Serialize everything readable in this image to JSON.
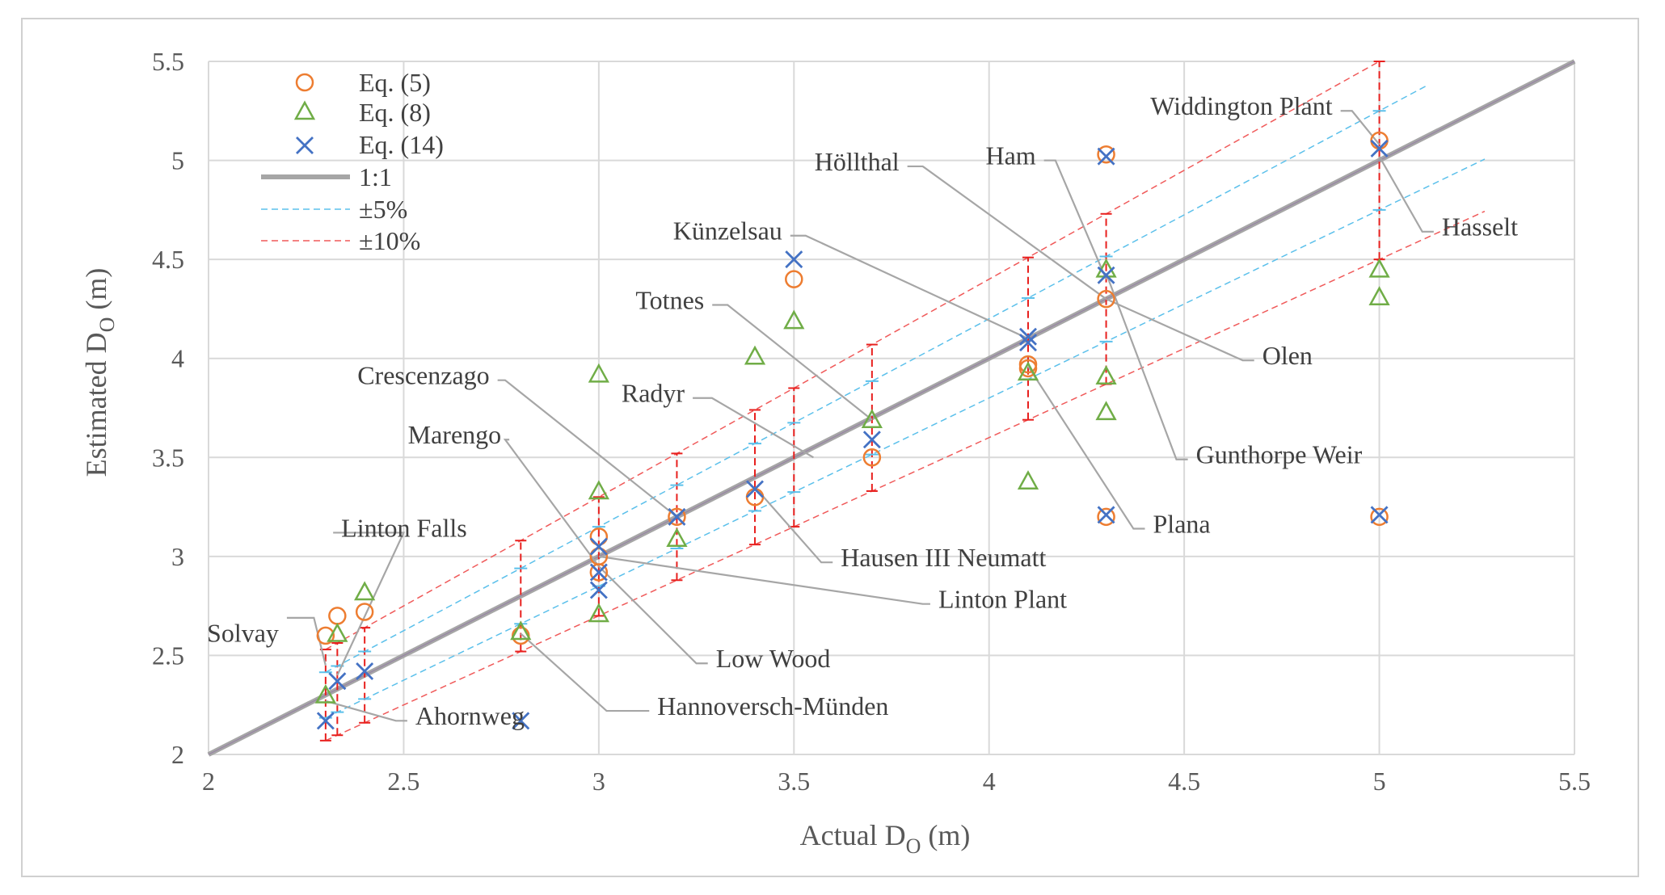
{
  "chart_data": {
    "type": "scatter",
    "xlabel": "Actual D",
    "xlabel_sub": "O",
    "xlabel_unit": " (m)",
    "ylabel": "Estimated D",
    "ylabel_sub": "O",
    "ylabel_unit": " (m)",
    "xlim": [
      2,
      5.5
    ],
    "ylim": [
      2,
      5.5
    ],
    "xticks": [
      2,
      2.5,
      3,
      3.5,
      4,
      4.5,
      5,
      5.5
    ],
    "yticks": [
      2,
      2.5,
      3,
      3.5,
      4,
      4.5,
      5,
      5.5
    ],
    "xtick_labels": [
      "2",
      "2.5",
      "3",
      "3.5",
      "4",
      "4.5",
      "5",
      "5.5"
    ],
    "ytick_labels": [
      "2",
      "2.5",
      "3",
      "3.5",
      "4",
      "4.5",
      "5",
      "5.5"
    ],
    "grid": true,
    "legend_position": "top-left",
    "colors": {
      "eq5": "#ed7d31",
      "eq8": "#70ad47",
      "eq14": "#4472c4",
      "one_to_one": "#a6a6a6",
      "band5": "#5bc0eb",
      "band10": "#f05a5a",
      "errorbar": "#e8201e",
      "leader": "#a6a6a6",
      "grid": "#d9d9d9"
    },
    "legend": [
      {
        "key": "eq5",
        "label": "Eq. (5)",
        "kind": "circle"
      },
      {
        "key": "eq8",
        "label": "Eq. (8)",
        "kind": "triangle"
      },
      {
        "key": "eq14",
        "label": "Eq. (14)",
        "kind": "cross"
      },
      {
        "key": "one_to_one",
        "label": "1:1",
        "kind": "line"
      },
      {
        "key": "band5",
        "label": "±5%",
        "kind": "dash"
      },
      {
        "key": "band10",
        "label": "±10%",
        "kind": "dash"
      }
    ],
    "series": [
      {
        "name": "Eq. (5)",
        "key": "eq5",
        "points": [
          [
            2.3,
            2.6
          ],
          [
            2.33,
            2.7
          ],
          [
            2.4,
            2.72
          ],
          [
            2.8,
            2.6
          ],
          [
            3.0,
            3.1
          ],
          [
            3.0,
            3.0
          ],
          [
            3.0,
            2.92
          ],
          [
            3.2,
            3.2
          ],
          [
            3.4,
            3.3
          ],
          [
            3.5,
            4.4
          ],
          [
            3.7,
            3.5
          ],
          [
            4.1,
            3.97
          ],
          [
            4.1,
            3.95
          ],
          [
            4.3,
            5.03
          ],
          [
            4.3,
            4.3
          ],
          [
            4.3,
            3.2
          ],
          [
            5.0,
            5.1
          ],
          [
            5.0,
            3.2
          ]
        ]
      },
      {
        "name": "Eq. (8)",
        "key": "eq8",
        "points": [
          [
            2.3,
            2.3
          ],
          [
            2.33,
            2.61
          ],
          [
            2.4,
            2.82
          ],
          [
            2.8,
            2.62
          ],
          [
            3.0,
            3.92
          ],
          [
            3.0,
            3.33
          ],
          [
            3.0,
            2.71
          ],
          [
            3.2,
            3.09
          ],
          [
            3.4,
            4.01
          ],
          [
            3.5,
            4.19
          ],
          [
            3.7,
            3.69
          ],
          [
            4.1,
            3.93
          ],
          [
            4.1,
            3.38
          ],
          [
            4.3,
            4.45
          ],
          [
            4.3,
            3.91
          ],
          [
            4.3,
            3.73
          ],
          [
            5.0,
            4.45
          ],
          [
            5.0,
            4.31
          ]
        ]
      },
      {
        "name": "Eq. (14)",
        "key": "eq14",
        "points": [
          [
            2.3,
            2.17
          ],
          [
            2.33,
            2.37
          ],
          [
            2.4,
            2.42
          ],
          [
            2.8,
            2.17
          ],
          [
            3.0,
            3.05
          ],
          [
            3.0,
            2.92
          ],
          [
            3.0,
            2.83
          ],
          [
            3.2,
            3.2
          ],
          [
            3.4,
            3.34
          ],
          [
            3.5,
            4.5
          ],
          [
            3.7,
            3.59
          ],
          [
            4.1,
            4.11
          ],
          [
            4.1,
            4.08
          ],
          [
            4.3,
            5.02
          ],
          [
            4.3,
            4.42
          ],
          [
            4.3,
            3.21
          ],
          [
            5.0,
            5.06
          ],
          [
            5.0,
            3.21
          ]
        ]
      }
    ],
    "error_bars": [
      2.3,
      2.33,
      2.4,
      2.8,
      3.0,
      3.2,
      3.4,
      3.5,
      3.7,
      4.1,
      4.3,
      5.0
    ],
    "annotations": [
      {
        "label": "Solvay",
        "point": [
          2.3,
          2.45
        ],
        "text_at": [
          2.18,
          2.57
        ],
        "elbow": [
          2.27,
          2.69
        ],
        "anchor": "end"
      },
      {
        "label": "Linton Falls",
        "point": [
          2.33,
          2.4
        ],
        "text_at": [
          2.34,
          3.1
        ],
        "elbow": [
          2.5,
          3.12
        ],
        "anchor": "start"
      },
      {
        "label": "Ahornweg",
        "point": [
          2.3,
          2.27
        ],
        "text_at": [
          2.53,
          2.15
        ],
        "elbow": [
          2.48,
          2.17
        ],
        "anchor": "start"
      },
      {
        "label": "Marengo",
        "point": [
          3.0,
          2.95
        ],
        "text_at": [
          2.75,
          3.57
        ],
        "elbow": [
          2.76,
          3.59
        ],
        "anchor": "end"
      },
      {
        "label": "Crescenzago",
        "point": [
          3.2,
          3.2
        ],
        "text_at": [
          2.72,
          3.87
        ],
        "elbow": [
          2.76,
          3.89
        ],
        "anchor": "end"
      },
      {
        "label": "Hannoversch-Münden",
        "point": [
          2.8,
          2.61
        ],
        "text_at": [
          3.15,
          2.2
        ],
        "elbow": [
          3.02,
          2.22
        ],
        "anchor": "start"
      },
      {
        "label": "Low Wood",
        "point": [
          3.0,
          2.95
        ],
        "text_at": [
          3.3,
          2.44
        ],
        "elbow": [
          3.25,
          2.46
        ],
        "anchor": "start"
      },
      {
        "label": "Linton Plant",
        "point": [
          3.0,
          3.0
        ],
        "text_at": [
          3.87,
          2.74
        ],
        "elbow": [
          3.83,
          2.76
        ],
        "anchor": "start"
      },
      {
        "label": "Radyr",
        "point": [
          3.55,
          3.5
        ],
        "text_at": [
          3.22,
          3.78
        ],
        "elbow": [
          3.29,
          3.8
        ],
        "anchor": "end"
      },
      {
        "label": "Totnes",
        "point": [
          3.7,
          3.69
        ],
        "text_at": [
          3.27,
          4.25
        ],
        "elbow": [
          3.33,
          4.27
        ],
        "anchor": "end"
      },
      {
        "label": "Künzelsau",
        "point": [
          4.1,
          4.1
        ],
        "text_at": [
          3.47,
          4.6
        ],
        "elbow": [
          3.53,
          4.62
        ],
        "anchor": "end"
      },
      {
        "label": "Hausen III Neumatt",
        "point": [
          3.4,
          3.35
        ],
        "text_at": [
          3.62,
          2.95
        ],
        "elbow": [
          3.57,
          2.97
        ],
        "anchor": "start"
      },
      {
        "label": "Höllthal",
        "point": [
          4.3,
          4.3
        ],
        "text_at": [
          3.77,
          4.95
        ],
        "elbow": [
          3.83,
          4.97
        ],
        "anchor": "end"
      },
      {
        "label": "Ham",
        "point": [
          4.3,
          4.4
        ],
        "text_at": [
          4.12,
          4.98
        ],
        "elbow": [
          4.17,
          5.0
        ],
        "anchor": "end"
      },
      {
        "label": "Olen",
        "point": [
          4.3,
          4.3
        ],
        "text_at": [
          4.7,
          3.97
        ],
        "elbow": [
          4.65,
          3.99
        ],
        "anchor": "start"
      },
      {
        "label": "Gunthorpe Weir",
        "point": [
          4.3,
          4.43
        ],
        "text_at": [
          4.53,
          3.47
        ],
        "elbow": [
          4.48,
          3.49
        ],
        "anchor": "start"
      },
      {
        "label": "Plana",
        "point": [
          4.1,
          3.96
        ],
        "text_at": [
          4.42,
          3.12
        ],
        "elbow": [
          4.37,
          3.14
        ],
        "anchor": "start"
      },
      {
        "label": "Widdington Plant",
        "point": [
          5.0,
          5.08
        ],
        "text_at": [
          4.88,
          5.23
        ],
        "elbow": [
          4.93,
          5.25
        ],
        "anchor": "end"
      },
      {
        "label": "Hasselt",
        "point": [
          5.0,
          5.02
        ],
        "text_at": [
          5.16,
          4.62
        ],
        "elbow": [
          5.11,
          4.64
        ],
        "anchor": "start"
      }
    ]
  }
}
